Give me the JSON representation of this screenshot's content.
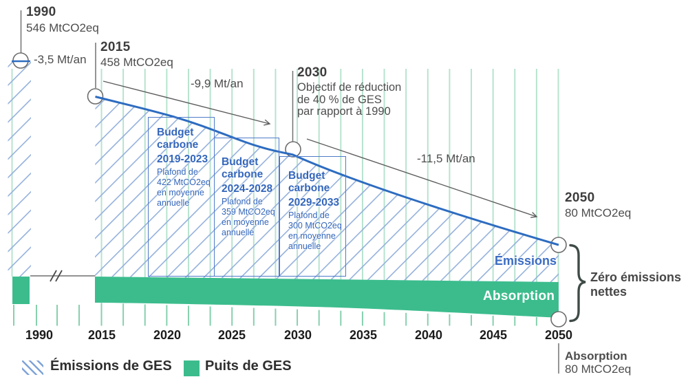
{
  "colors": {
    "emissions_blue": "#2d6cc0",
    "hatch_blue": "#94b0dc",
    "budget_blue": "#3366bb",
    "budget_border": "#4d7ac9",
    "sink_green": "#3cbc8d",
    "grid_green": "#b7e3cf",
    "tick_green": "#86d0ae",
    "line_gray": "#5d5d5d",
    "text_dark": "#3d3d3d",
    "text_gray": "#4d4d4d"
  },
  "chart_data": {
    "type": "area",
    "unit": "MtCO2eq",
    "x_axis": {
      "ticks": [
        "1990",
        "2015",
        "2020",
        "2025",
        "2030",
        "2035",
        "2040",
        "2045",
        "2050"
      ],
      "break_between": [
        "1990",
        "2015"
      ]
    },
    "series": [
      {
        "name": "Émissions de GES",
        "style": "blue-hatched-area",
        "points": [
          {
            "year": 1990,
            "value": 546
          },
          {
            "year": 2015,
            "value": 458
          },
          {
            "year": 2050,
            "value": 80
          }
        ]
      },
      {
        "name": "Puits de GES",
        "style": "green-area",
        "area_label": "Absorption",
        "points": [
          {
            "year": 2050,
            "value": 80
          }
        ]
      }
    ],
    "reduction_rates": [
      {
        "segment": "1990-2015",
        "label": "-3,5 Mt/an"
      },
      {
        "segment": "2015-2030",
        "label": "-9,9 Mt/an"
      },
      {
        "segment": "2030-2050",
        "label": "-11,5 Mt/an"
      }
    ],
    "carbon_budgets": [
      {
        "title": "Budget carbone",
        "period": "2019-2023",
        "detail": "Plafond de 422 MtCO2eq en moyenne annuelle",
        "cap_avg_MtCO2eq": 422
      },
      {
        "title": "Budget carbone",
        "period": "2024-2028",
        "detail": "Plafond de 359 MtCO2eq en moyenne annuelle",
        "cap_avg_MtCO2eq": 359
      },
      {
        "title": "Budget carbone",
        "period": "2029-2033",
        "detail": "Plafond de 300 MtCO2eq en moyenne annuelle",
        "cap_avg_MtCO2eq": 300
      }
    ],
    "milestones": [
      {
        "year": "1990",
        "value": "546 MtCO2eq"
      },
      {
        "year": "2015",
        "value": "458 MtCO2eq"
      },
      {
        "year": "2030",
        "note": "Objectif de réduction de 40 % de GES par rapport à 1990",
        "display_lines": [
          "Objectif de réduction",
          "de 40 % de GES",
          "par rapport à 1990"
        ]
      },
      {
        "year": "2050",
        "value": "80 MtCO2eq"
      }
    ],
    "annotations": {
      "zero_net": "Zéro émissions nettes",
      "emissions_area": "Émissions",
      "absorption_band": "Absorption",
      "absorption_2050": {
        "title": "Absorption",
        "value": "80 MtCO2eq"
      }
    },
    "legend": {
      "position": "bottom-left",
      "entries": [
        "Émissions de GES",
        "Puits de GES"
      ]
    },
    "grid": "vertical-green-lines"
  }
}
